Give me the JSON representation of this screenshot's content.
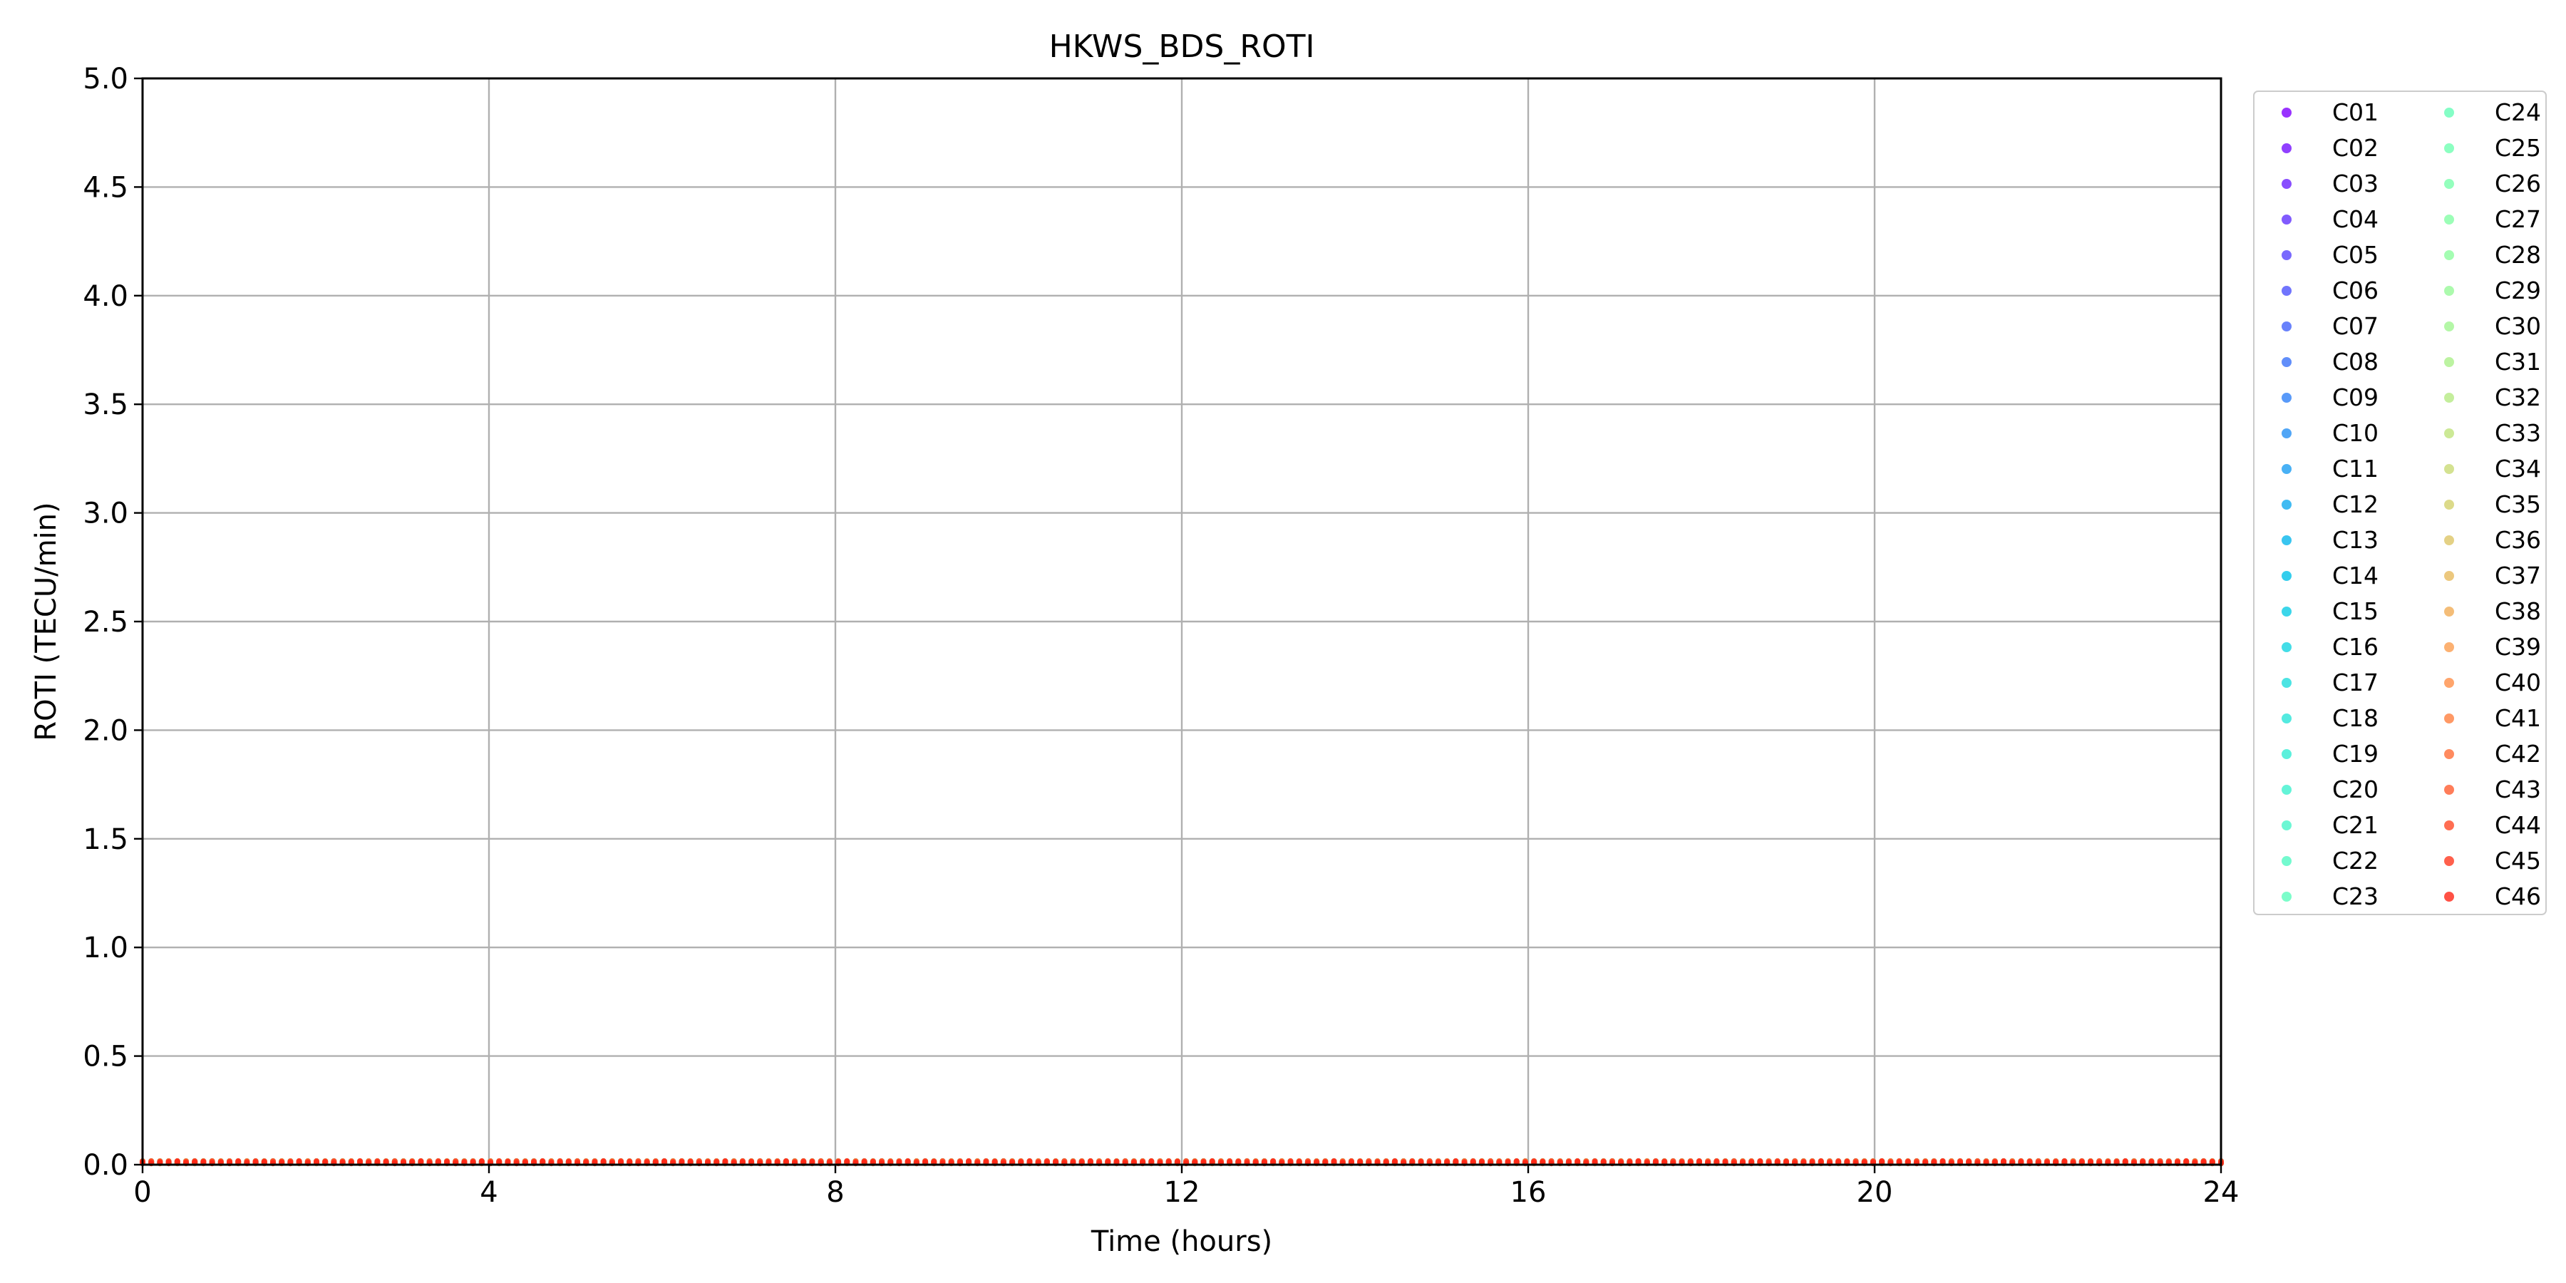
{
  "chart_data": {
    "type": "scatter",
    "title": "HKWS_BDS_ROTI",
    "xlabel": "Time (hours)",
    "ylabel": "ROTI (TECU/min)",
    "xlim": [
      0,
      24
    ],
    "ylim": [
      0,
      5.0
    ],
    "x_ticks": [
      "0",
      "4",
      "8",
      "12",
      "16",
      "20",
      "24"
    ],
    "y_ticks": [
      "0.0",
      "0.5",
      "1.0",
      "1.5",
      "2.0",
      "2.5",
      "3.0",
      "3.5",
      "4.0",
      "4.5",
      "5.0"
    ],
    "grid": true,
    "legend_position": "outside-right",
    "legend_columns": 2,
    "colormap": "rainbow",
    "series_values_note_visible": false,
    "series": [
      {
        "name": "C01",
        "color": "#8000ff",
        "x_range": [
          0,
          24
        ],
        "y_approx": 0.02
      },
      {
        "name": "C02",
        "color": "#7610ff",
        "x_range": [
          0,
          24
        ],
        "y_approx": 0.02
      },
      {
        "name": "C03",
        "color": "#6c22fe",
        "x_range": [
          0,
          24
        ],
        "y_approx": 0.02
      },
      {
        "name": "C04",
        "color": "#6232fe",
        "x_range": [
          0,
          24
        ],
        "y_approx": 0.02
      },
      {
        "name": "C05",
        "color": "#5843fd",
        "x_range": [
          0,
          24
        ],
        "y_approx": 0.02
      },
      {
        "name": "C06",
        "color": "#4e53fc",
        "x_range": [
          0,
          24
        ],
        "y_approx": 0.02
      },
      {
        "name": "C07",
        "color": "#4463fa",
        "x_range": [
          0,
          24
        ],
        "y_approx": 0.02
      },
      {
        "name": "C08",
        "color": "#3a72f9",
        "x_range": [
          0,
          24
        ],
        "y_approx": 0.02
      },
      {
        "name": "C09",
        "color": "#3081f7",
        "x_range": [
          0,
          24
        ],
        "y_approx": 0.02
      },
      {
        "name": "C10",
        "color": "#2690f4",
        "x_range": [
          0,
          24
        ],
        "y_approx": 0.02
      },
      {
        "name": "C11",
        "color": "#1c9df2",
        "x_range": [
          0,
          24
        ],
        "y_approx": 0.02
      },
      {
        "name": "C12",
        "color": "#12aaef",
        "x_range": [
          0,
          24
        ],
        "y_approx": 0.02
      },
      {
        "name": "C13",
        "color": "#08b6ec",
        "x_range": [
          0,
          24
        ],
        "y_approx": 0.02
      },
      {
        "name": "C14",
        "color": "#01c2e8",
        "x_range": [
          0,
          24
        ],
        "y_approx": 0.02
      },
      {
        "name": "C15",
        "color": "#0bcce5",
        "x_range": [
          0,
          24
        ],
        "y_approx": 0.02
      },
      {
        "name": "C16",
        "color": "#15d5e1",
        "x_range": [
          0,
          24
        ],
        "y_approx": 0.02
      },
      {
        "name": "C17",
        "color": "#1fdddc",
        "x_range": [
          0,
          24
        ],
        "y_approx": 0.02
      },
      {
        "name": "C18",
        "color": "#29e5d8",
        "x_range": [
          0,
          24
        ],
        "y_approx": 0.02
      },
      {
        "name": "C19",
        "color": "#33ecd3",
        "x_range": [
          0,
          24
        ],
        "y_approx": 0.02
      },
      {
        "name": "C20",
        "color": "#3df1ce",
        "x_range": [
          0,
          24
        ],
        "y_approx": 0.02
      },
      {
        "name": "C21",
        "color": "#47f5c9",
        "x_range": [
          0,
          24
        ],
        "y_approx": 0.02
      },
      {
        "name": "C22",
        "color": "#51f9c3",
        "x_range": [
          0,
          24
        ],
        "y_approx": 0.02
      },
      {
        "name": "C23",
        "color": "#5bfcbd",
        "x_range": [
          0,
          24
        ],
        "y_approx": 0.02
      },
      {
        "name": "C24",
        "color": "#65feb8",
        "x_range": [
          0,
          24
        ],
        "y_approx": 0.02
      },
      {
        "name": "C25",
        "color": "#6fffb2",
        "x_range": [
          0,
          24
        ],
        "y_approx": 0.02
      },
      {
        "name": "C26",
        "color": "#79ffac",
        "x_range": [
          0,
          24
        ],
        "y_approx": 0.02
      },
      {
        "name": "C27",
        "color": "#83fea5",
        "x_range": [
          0,
          24
        ],
        "y_approx": 0.02
      },
      {
        "name": "C28",
        "color": "#8dfc9f",
        "x_range": [
          0,
          24
        ],
        "y_approx": 0.02
      },
      {
        "name": "C29",
        "color": "#97f998",
        "x_range": [
          0,
          24
        ],
        "y_approx": 0.02
      },
      {
        "name": "C30",
        "color": "#a1f591",
        "x_range": [
          0,
          24
        ],
        "y_approx": 0.02
      },
      {
        "name": "C31",
        "color": "#abf08a",
        "x_range": [
          0,
          24
        ],
        "y_approx": 0.02
      },
      {
        "name": "C32",
        "color": "#b5ea83",
        "x_range": [
          0,
          24
        ],
        "y_approx": 0.02
      },
      {
        "name": "C33",
        "color": "#bfe37c",
        "x_range": [
          0,
          24
        ],
        "y_approx": 0.02
      },
      {
        "name": "C34",
        "color": "#c9db75",
        "x_range": [
          0,
          24
        ],
        "y_approx": 0.02
      },
      {
        "name": "C35",
        "color": "#d3d16d",
        "x_range": [
          0,
          24
        ],
        "y_approx": 0.02
      },
      {
        "name": "C36",
        "color": "#ddc666",
        "x_range": [
          0,
          24
        ],
        "y_approx": 0.02
      },
      {
        "name": "C37",
        "color": "#e7ba5e",
        "x_range": [
          0,
          24
        ],
        "y_approx": 0.02
      },
      {
        "name": "C38",
        "color": "#f1ac56",
        "x_range": [
          0,
          24
        ],
        "y_approx": 0.02
      },
      {
        "name": "C39",
        "color": "#fb9e4f",
        "x_range": [
          0,
          24
        ],
        "y_approx": 0.02
      },
      {
        "name": "C40",
        "color": "#ff8f47",
        "x_range": [
          0,
          24
        ],
        "y_approx": 0.02
      },
      {
        "name": "C41",
        "color": "#ff7f3f",
        "x_range": [
          0,
          24
        ],
        "y_approx": 0.02
      },
      {
        "name": "C42",
        "color": "#ff6e37",
        "x_range": [
          0,
          24
        ],
        "y_approx": 0.02
      },
      {
        "name": "C43",
        "color": "#ff5c2f",
        "x_range": [
          0,
          24
        ],
        "y_approx": 0.02
      },
      {
        "name": "C44",
        "color": "#ff4a27",
        "x_range": [
          0,
          24
        ],
        "y_approx": 0.02
      },
      {
        "name": "C45",
        "color": "#ff381f",
        "x_range": [
          0,
          24
        ],
        "y_approx": 0.02
      },
      {
        "name": "C46",
        "color": "#ff2517",
        "x_range": [
          0,
          24
        ],
        "y_approx": 0.02
      }
    ]
  }
}
